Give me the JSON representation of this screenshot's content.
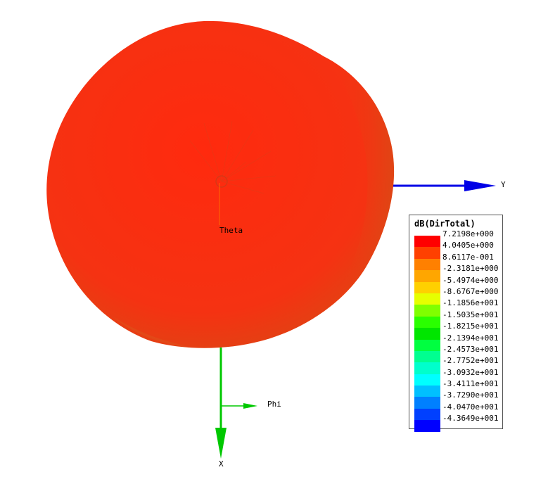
{
  "plot": {
    "quantity": "dB(DirTotal)",
    "axes": {
      "y_label": "Y",
      "x_label": "X",
      "theta_label": "Theta",
      "phi_label": "Phi"
    },
    "axis_colors": {
      "y": "#0000e6",
      "x": "#00c800",
      "phi": "#00c800",
      "theta": "#ff6600"
    },
    "surface_color": "#ff2a10"
  },
  "legend": {
    "title": "dB(DirTotal)",
    "entries": [
      {
        "value": "7.2198e+000",
        "color": "#ff0000"
      },
      {
        "value": "4.0405e+000",
        "color": "#ff4000"
      },
      {
        "value": "8.6117e-001",
        "color": "#ff8000"
      },
      {
        "value": "-2.3181e+000",
        "color": "#ffa600"
      },
      {
        "value": "-5.4974e+000",
        "color": "#ffd000"
      },
      {
        "value": "-8.6767e+000",
        "color": "#e6ff00"
      },
      {
        "value": "-1.1856e+001",
        "color": "#80ff00"
      },
      {
        "value": "-1.5035e+001",
        "color": "#2aff00"
      },
      {
        "value": "-1.8215e+001",
        "color": "#00e600"
      },
      {
        "value": "-2.1394e+001",
        "color": "#00ff40"
      },
      {
        "value": "-2.4573e+001",
        "color": "#00ff90"
      },
      {
        "value": "-2.7752e+001",
        "color": "#00ffcc"
      },
      {
        "value": "-3.0932e+001",
        "color": "#00ffff"
      },
      {
        "value": "-3.4111e+001",
        "color": "#00c0ff"
      },
      {
        "value": "-3.7290e+001",
        "color": "#0080ff"
      },
      {
        "value": "-4.0470e+001",
        "color": "#0040ff"
      },
      {
        "value": "-4.3649e+001",
        "color": "#0000ff"
      }
    ]
  }
}
